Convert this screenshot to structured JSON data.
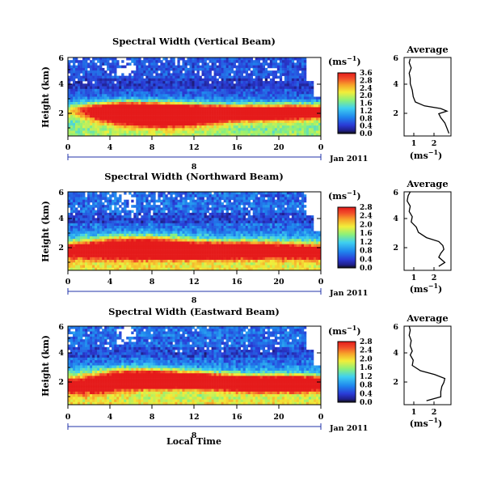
{
  "chart_data": [
    {
      "type": "heatmap",
      "title": "Spectral Width (Vertical Beam)",
      "ylabel": "Height (km)",
      "x_ticks": [
        "0",
        "4",
        "8",
        "12",
        "16",
        "20",
        "0"
      ],
      "date_tick": "8",
      "date_label": "Jan 2011",
      "y_ticks": [
        "2",
        "4",
        "6"
      ],
      "xlim": [
        0,
        24
      ],
      "ylim": [
        0,
        6
      ],
      "colorbar": {
        "unit": "(ms",
        "unit_exp": "−1",
        "unit_close": ")",
        "labels": [
          "0.0",
          "0.4",
          "0.8",
          "1.2",
          "1.6",
          "2.0",
          "2.4",
          "2.8",
          "3.6"
        ],
        "max": 3.6
      },
      "bright_layer": [
        [
          4.8,
          2.0,
          0.5
        ],
        [
          6,
          1.8,
          0.7
        ],
        [
          8,
          1.5,
          0.8
        ],
        [
          10,
          1.5,
          0.7
        ],
        [
          12,
          1.7,
          0.6
        ],
        [
          16,
          1.8,
          0.5
        ],
        [
          20,
          1.7,
          0.6
        ],
        [
          23.5,
          1.9,
          0.5
        ]
      ],
      "average": {
        "title": "Average",
        "xlabel": "(ms",
        "xlabel_exp": "−1",
        "xlabel_close": ")",
        "x_ticks": [
          "1",
          "2"
        ],
        "y_ticks": [
          "2",
          "4",
          "6"
        ],
        "xlim": [
          0.5,
          2.8
        ],
        "height": [
          0.2,
          0.6,
          1.0,
          1.4,
          1.7,
          1.9,
          2.1,
          2.3,
          2.6,
          3.0,
          3.5,
          4.0,
          4.4,
          4.8,
          5.2,
          5.6,
          5.9
        ],
        "value": [
          2.7,
          2.6,
          2.5,
          2.3,
          2.2,
          2.6,
          2.3,
          1.5,
          1.05,
          0.95,
          0.9,
          0.8,
          0.8,
          0.75,
          0.85,
          0.75,
          0.8
        ]
      }
    },
    {
      "type": "heatmap",
      "title": "Spectral Width (Northward Beam)",
      "ylabel": "Height (km)",
      "x_ticks": [
        "0",
        "4",
        "8",
        "12",
        "16",
        "20",
        "0"
      ],
      "date_tick": "8",
      "date_label": "Jan 2011",
      "y_ticks": [
        "2",
        "4",
        "6"
      ],
      "xlim": [
        0,
        24
      ],
      "ylim": [
        0,
        6
      ],
      "colorbar": {
        "unit": "(ms",
        "unit_exp": "−1",
        "unit_close": ")",
        "labels": [
          "0.0",
          "0.4",
          "0.8",
          "1.2",
          "1.6",
          "2.0",
          "2.4",
          "2.8"
        ],
        "max": 3.0
      },
      "bright_layer": [
        [
          1,
          1.5,
          0.6
        ],
        [
          6.5,
          1.8,
          0.8
        ],
        [
          9,
          1.6,
          0.6
        ],
        [
          13,
          1.4,
          0.5
        ],
        [
          17,
          1.6,
          0.6
        ],
        [
          23.5,
          1.4,
          0.6
        ]
      ],
      "average": {
        "title": "Average",
        "xlabel": "(ms",
        "xlabel_exp": "−1",
        "xlabel_close": ")",
        "x_ticks": [
          "1",
          "2"
        ],
        "y_ticks": [
          "2",
          "4",
          "6"
        ],
        "xlim": [
          0.5,
          2.8
        ],
        "height": [
          0.3,
          0.6,
          1.0,
          1.3,
          1.6,
          1.9,
          2.2,
          2.5,
          2.9,
          3.3,
          3.7,
          4.1,
          4.5,
          4.9,
          5.3,
          5.7,
          6.0
        ],
        "value": [
          2.2,
          2.5,
          2.2,
          2.3,
          2.45,
          2.4,
          2.2,
          1.6,
          1.2,
          1.1,
          0.85,
          0.9,
          0.75,
          0.8,
          0.65,
          0.7,
          0.8
        ]
      }
    },
    {
      "type": "heatmap",
      "title": "Spectral Width (Eastward Beam)",
      "ylabel": "Height (km)",
      "x_ticks": [
        "0",
        "4",
        "8",
        "12",
        "16",
        "20",
        "0"
      ],
      "date_tick": "8",
      "date_label": "Jan 2011",
      "xlabel": "Local Time",
      "y_ticks": [
        "2",
        "4",
        "6"
      ],
      "xlim": [
        0,
        24
      ],
      "ylim": [
        0,
        6
      ],
      "colorbar": {
        "unit": "(ms",
        "unit_exp": "−1",
        "unit_close": ")",
        "labels": [
          "0.0",
          "0.4",
          "0.8",
          "1.2",
          "1.6",
          "2.0",
          "2.4",
          "2.8"
        ],
        "max": 3.0
      },
      "bright_layer": [
        [
          1,
          1.4,
          0.6
        ],
        [
          6.5,
          2.1,
          0.7
        ],
        [
          9,
          1.8,
          0.5
        ],
        [
          12,
          1.9,
          0.5
        ],
        [
          17,
          1.6,
          0.5
        ],
        [
          20,
          1.5,
          0.5
        ],
        [
          23,
          1.7,
          0.5
        ]
      ],
      "average": {
        "title": "Average",
        "xlabel": "(ms",
        "xlabel_exp": "−1",
        "xlabel_close": ")",
        "x_ticks": [
          "1",
          "2"
        ],
        "y_ticks": [
          "2",
          "4",
          "6"
        ],
        "xlim": [
          0.5,
          2.8
        ],
        "height": [
          0.3,
          0.6,
          1.0,
          1.4,
          1.7,
          2.0,
          2.3,
          2.6,
          3.0,
          3.4,
          3.8,
          4.1,
          4.5,
          4.9,
          5.3,
          5.7,
          6.0
        ],
        "value": [
          1.6,
          2.3,
          2.3,
          2.35,
          2.45,
          2.5,
          2.0,
          1.3,
          0.9,
          0.95,
          0.8,
          0.9,
          0.8,
          0.85,
          0.75,
          0.8,
          0.75
        ]
      }
    }
  ]
}
